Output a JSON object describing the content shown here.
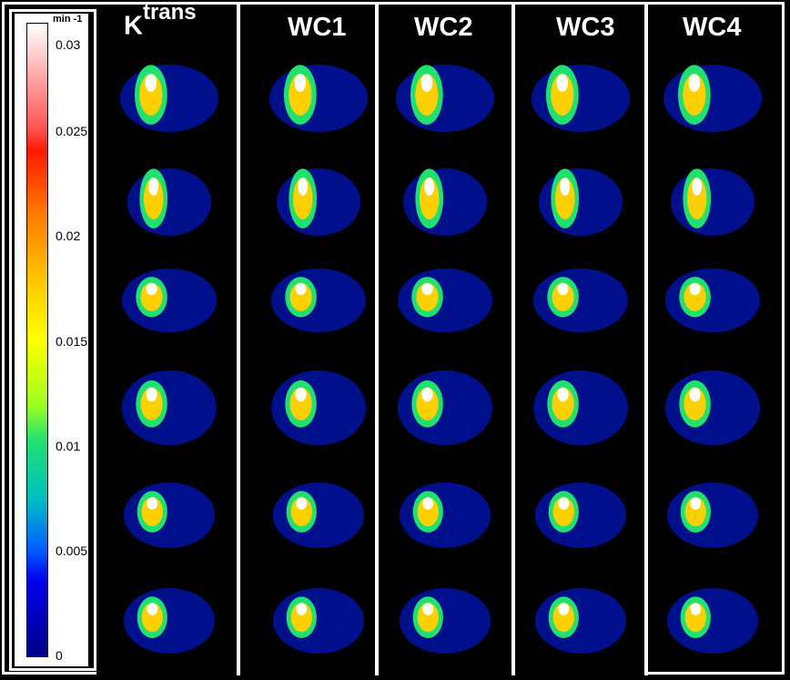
{
  "colorbar": {
    "unit_label": "min -1",
    "ticks": [
      "0.03",
      "0.025",
      "0.02",
      "0.015",
      "0.01",
      "0.005",
      "0"
    ]
  },
  "columns": [
    {
      "base": "K",
      "sup": "trans"
    },
    {
      "base": "WC1",
      "sup": ""
    },
    {
      "base": "WC2",
      "sup": ""
    },
    {
      "base": "WC3",
      "sup": ""
    },
    {
      "base": "WC4",
      "sup": ""
    }
  ],
  "colors": {
    "background": "#000000",
    "border": "#ffffff",
    "tissue": "#00108c",
    "lesion_core": "#ffffff",
    "lesion_mid": "#ffd000",
    "lesion_edge": "#20e070"
  }
}
